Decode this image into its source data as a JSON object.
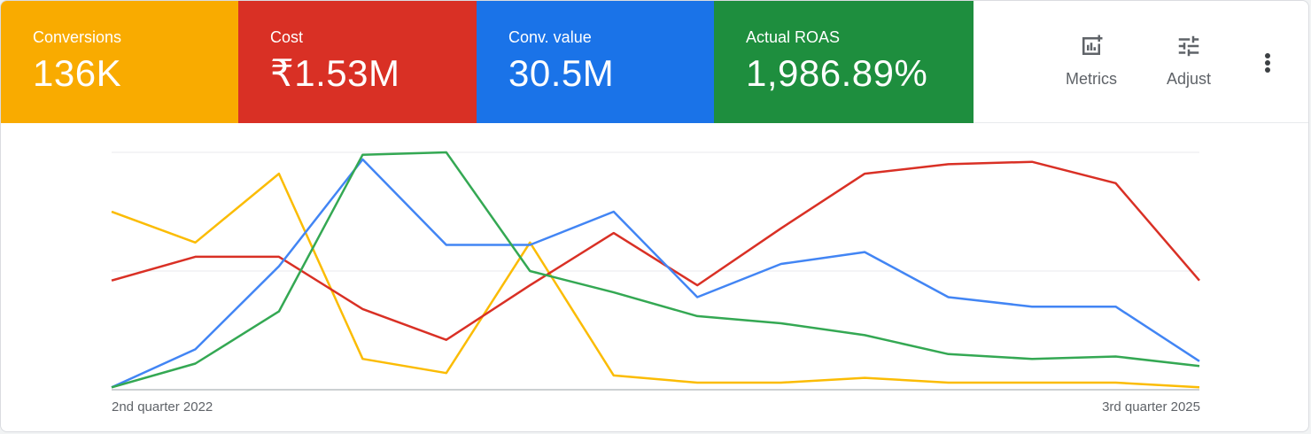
{
  "scorecards": [
    {
      "label": "Conversions",
      "value": "136K",
      "color": "#f9ab00"
    },
    {
      "label": "Cost",
      "value": "₹1.53M",
      "color": "#d93025"
    },
    {
      "label": "Conv. value",
      "value": "30.5M",
      "color": "#1a73e8"
    },
    {
      "label": "Actual ROAS",
      "value": "1,986.89%",
      "color": "#1e8e3e"
    }
  ],
  "toolbar": {
    "metrics_label": "Metrics",
    "metrics_icon": "add-chart-icon",
    "adjust_label": "Adjust",
    "adjust_icon": "tune-icon",
    "more_icon": "more-vert-icon"
  },
  "chart_data": {
    "type": "line",
    "x_start_label": "2nd quarter 2022",
    "x_end_label": "3rd quarter 2025",
    "x": [
      "2nd quarter 2022",
      "",
      "",
      "",
      "",
      "",
      "",
      "",
      "",
      "",
      "",
      "",
      "",
      "3rd quarter 2025"
    ],
    "ylim": [
      0,
      1
    ],
    "grid": true,
    "series": [
      {
        "key": "conversions",
        "color": "#fbbc04",
        "values": [
          0.75,
          0.62,
          0.91,
          0.13,
          0.07,
          0.62,
          0.06,
          0.03,
          0.03,
          0.05,
          0.03,
          0.03,
          0.03,
          0.01
        ]
      },
      {
        "key": "cost",
        "color": "#d93025",
        "values": [
          0.46,
          0.56,
          0.56,
          0.34,
          0.21,
          0.44,
          0.66,
          0.44,
          0.68,
          0.91,
          0.95,
          0.96,
          0.87,
          0.46
        ]
      },
      {
        "key": "conv_value",
        "color": "#4285f4",
        "values": [
          0.01,
          0.17,
          0.52,
          0.97,
          0.61,
          0.61,
          0.75,
          0.39,
          0.53,
          0.58,
          0.39,
          0.35,
          0.35,
          0.12
        ]
      },
      {
        "key": "actual_roas",
        "color": "#34a853",
        "values": [
          0.01,
          0.11,
          0.33,
          0.99,
          1.0,
          0.5,
          0.41,
          0.31,
          0.28,
          0.23,
          0.15,
          0.13,
          0.14,
          0.1
        ]
      }
    ]
  }
}
